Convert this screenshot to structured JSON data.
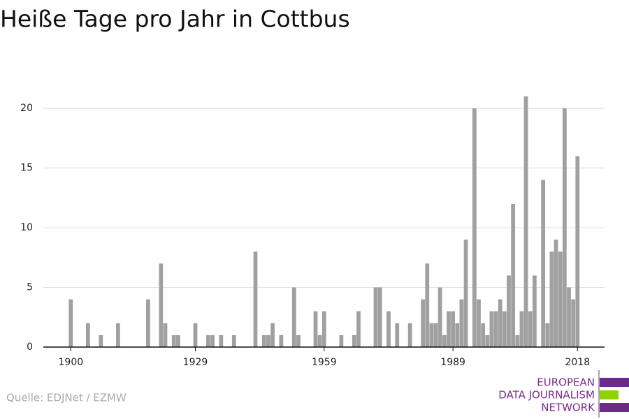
{
  "chart_data": {
    "type": "bar",
    "title": "Heiße Tage pro Jahr in Cottbus",
    "source": "Quelle: EDJNet / EZMW",
    "x": [
      1900,
      1904,
      1907,
      1911,
      1918,
      1921,
      1922,
      1924,
      1925,
      1929,
      1932,
      1933,
      1935,
      1938,
      1943,
      1945,
      1946,
      1947,
      1949,
      1952,
      1953,
      1957,
      1958,
      1959,
      1963,
      1966,
      1967,
      1971,
      1972,
      1974,
      1976,
      1979,
      1982,
      1983,
      1984,
      1985,
      1986,
      1987,
      1988,
      1989,
      1990,
      1991,
      1992,
      1994,
      1995,
      1996,
      1997,
      1998,
      1999,
      2000,
      2001,
      2002,
      2003,
      2004,
      2005,
      2006,
      2007,
      2008,
      2010,
      2011,
      2012,
      2013,
      2014,
      2015,
      2016,
      2017,
      2018
    ],
    "values": [
      4,
      2,
      1,
      2,
      4,
      7,
      2,
      1,
      1,
      2,
      1,
      1,
      1,
      1,
      8,
      1,
      1,
      2,
      1,
      5,
      1,
      3,
      1,
      3,
      1,
      1,
      3,
      5,
      5,
      3,
      2,
      2,
      4,
      7,
      2,
      2,
      5,
      1,
      3,
      3,
      2,
      4,
      9,
      20,
      4,
      2,
      1,
      3,
      3,
      4,
      3,
      6,
      12,
      1,
      3,
      21,
      3,
      6,
      14,
      2,
      8,
      9,
      8,
      20,
      5,
      4,
      16
    ],
    "color": "#a0a0a0",
    "xlim": [
      1893.6,
      2024.3
    ],
    "xticks": [
      1900,
      1929,
      1959,
      1989,
      2018
    ],
    "ylim": [
      0,
      22
    ],
    "yticks": [
      0,
      5,
      10,
      15,
      20
    ],
    "grid": true
  },
  "logo": {
    "lines": [
      "EUROPEAN",
      "DATA JOURNALISM",
      "NETWORK"
    ]
  }
}
